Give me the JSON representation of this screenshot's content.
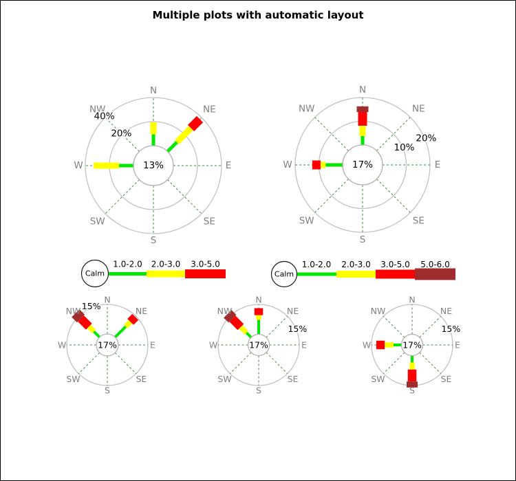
{
  "title": "Multiple plots with automatic layout",
  "colors": {
    "ring": "#c2c2c2",
    "compass_text": "#808080",
    "dashed_spoke": "#3d8b3d",
    "calm_circle_stroke": "#b0b0b0",
    "legend_circle_stroke": "#1a1a1a",
    "label_text": "#000000"
  },
  "chart_data": {
    "type": "windrose",
    "title": "Multiple plots with automatic layout",
    "compass_labels": [
      "N",
      "NE",
      "E",
      "SE",
      "S",
      "SW",
      "W",
      "NW"
    ],
    "calm_label": "Calm",
    "speed_bins": [
      {
        "label": "1.0-2.0",
        "color": "#00e800"
      },
      {
        "label": "2.0-3.0",
        "color": "#ffff00"
      },
      {
        "label": "3.0-5.0",
        "color": "#ff0000"
      },
      {
        "label": "5.0-6.0",
        "color": "#a02d2d"
      }
    ],
    "legends": [
      {
        "bins": [
          0,
          1,
          2
        ]
      },
      {
        "bins": [
          0,
          1,
          2,
          3
        ]
      }
    ],
    "roses": [
      {
        "name": "top-left",
        "calm_value": "13%",
        "max_pct": 40,
        "rings": [
          {
            "pct": 20,
            "label": "20%"
          },
          {
            "pct": 40,
            "label": "40%"
          }
        ],
        "ring_label_dir": "NW",
        "spokes": [
          {
            "dir": "N",
            "segments": [
              {
                "bin": 0,
                "from": 0,
                "to": 9.5
              },
              {
                "bin": 1,
                "from": 9.5,
                "to": 19.5
              }
            ]
          },
          {
            "dir": "NE",
            "segments": [
              {
                "bin": 0,
                "from": 0,
                "to": 11
              },
              {
                "bin": 1,
                "from": 11,
                "to": 27.5
              },
              {
                "bin": 2,
                "from": 27.5,
                "to": 38
              }
            ]
          },
          {
            "dir": "W",
            "segments": [
              {
                "bin": 0,
                "from": 0,
                "to": 12
              },
              {
                "bin": 1,
                "from": 12,
                "to": 33
              }
            ]
          }
        ]
      },
      {
        "name": "top-right",
        "calm_value": "17%",
        "max_pct": 20,
        "rings": [
          {
            "pct": 10,
            "label": "10%"
          },
          {
            "pct": 20,
            "label": "20%"
          }
        ],
        "ring_label_dir": "ENE",
        "spokes": [
          {
            "dir": "N",
            "segments": [
              {
                "bin": 0,
                "from": 0,
                "to": 3.8
              },
              {
                "bin": 1,
                "from": 3.8,
                "to": 8.1
              },
              {
                "bin": 2,
                "from": 8.1,
                "to": 13.9
              },
              {
                "bin": 3,
                "from": 13.9,
                "to": 16.3
              }
            ]
          },
          {
            "dir": "W",
            "segments": [
              {
                "bin": 0,
                "from": 0,
                "to": 7.2
              },
              {
                "bin": 1,
                "from": 7.2,
                "to": 9.3
              },
              {
                "bin": 2,
                "from": 9.3,
                "to": 12.8
              }
            ]
          }
        ]
      },
      {
        "name": "bottom-left",
        "calm_value": "17%",
        "max_pct": 15,
        "rings": [
          {
            "pct": 15,
            "label": "15%"
          }
        ],
        "ring_label_dir": "NNW",
        "spokes": [
          {
            "dir": "NW",
            "segments": [
              {
                "bin": 0,
                "from": 0,
                "to": 4.1
              },
              {
                "bin": 1,
                "from": 4.1,
                "to": 7.6
              },
              {
                "bin": 2,
                "from": 7.6,
                "to": 13.4
              },
              {
                "bin": 3,
                "from": 13.4,
                "to": 17.2
              }
            ]
          },
          {
            "dir": "NE",
            "segments": [
              {
                "bin": 0,
                "from": 0,
                "to": 7.6
              },
              {
                "bin": 1,
                "from": 7.6,
                "to": 11
              },
              {
                "bin": 2,
                "from": 11,
                "to": 14.5
              }
            ]
          }
        ]
      },
      {
        "name": "bottom-middle",
        "calm_value": "17%",
        "max_pct": 15,
        "rings": [
          {
            "pct": 15,
            "label": "15%"
          }
        ],
        "ring_label_dir": "ENE",
        "spokes": [
          {
            "dir": "N",
            "segments": [
              {
                "bin": 0,
                "from": 0,
                "to": 7.3
              },
              {
                "bin": 1,
                "from": 7.3,
                "to": 9.6
              },
              {
                "bin": 2,
                "from": 9.6,
                "to": 13.1
              }
            ]
          },
          {
            "dir": "NW",
            "segments": [
              {
                "bin": 0,
                "from": 0,
                "to": 3.3
              },
              {
                "bin": 1,
                "from": 3.3,
                "to": 7.4
              },
              {
                "bin": 2,
                "from": 7.4,
                "to": 13.3
              },
              {
                "bin": 3,
                "from": 13.3,
                "to": 16.7
              }
            ]
          }
        ]
      },
      {
        "name": "bottom-right",
        "calm_value": "17%",
        "max_pct": 15,
        "rings": [
          {
            "pct": 15,
            "label": "15%"
          }
        ],
        "ring_label_dir": "ENE",
        "spokes": [
          {
            "dir": "W",
            "segments": [
              {
                "bin": 0,
                "from": 0,
                "to": 4
              },
              {
                "bin": 1,
                "from": 4,
                "to": 8.4
              },
              {
                "bin": 2,
                "from": 8.4,
                "to": 12.6
              }
            ]
          },
          {
            "dir": "S",
            "segments": [
              {
                "bin": 0,
                "from": 0,
                "to": 3.5
              },
              {
                "bin": 1,
                "from": 3.5,
                "to": 7
              },
              {
                "bin": 2,
                "from": 7,
                "to": 13
              },
              {
                "bin": 3,
                "from": 13,
                "to": 16
              }
            ]
          }
        ]
      }
    ]
  }
}
